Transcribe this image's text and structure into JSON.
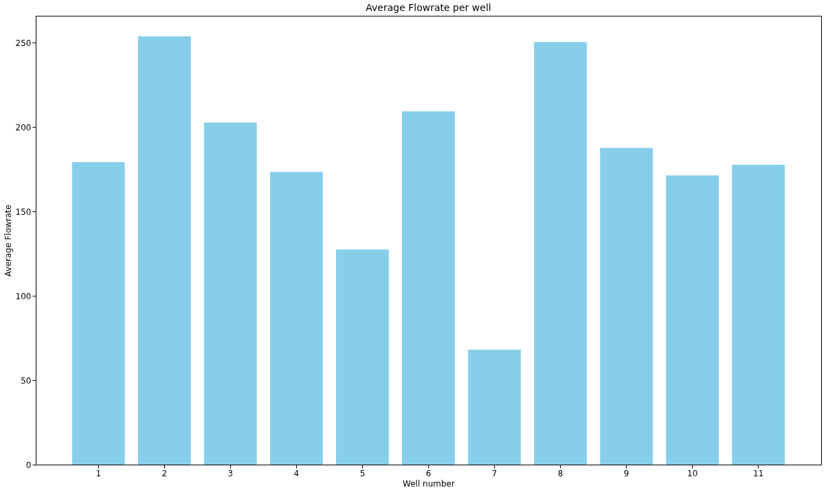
{
  "chart_data": {
    "type": "bar",
    "title": "Average Flowrate per well",
    "xlabel": "Well number",
    "ylabel": "Average Flowrate",
    "categories": [
      "1",
      "2",
      "3",
      "4",
      "5",
      "6",
      "7",
      "8",
      "9",
      "10",
      "11"
    ],
    "values": [
      179.3,
      253.8,
      202.8,
      173.5,
      127.5,
      209.4,
      68.1,
      250.4,
      187.7,
      171.4,
      177.7
    ],
    "color": "#87ceeb",
    "ylim": [
      0,
      266
    ],
    "yticks": [
      0,
      50,
      100,
      150,
      200,
      250
    ],
    "grid": false
  }
}
